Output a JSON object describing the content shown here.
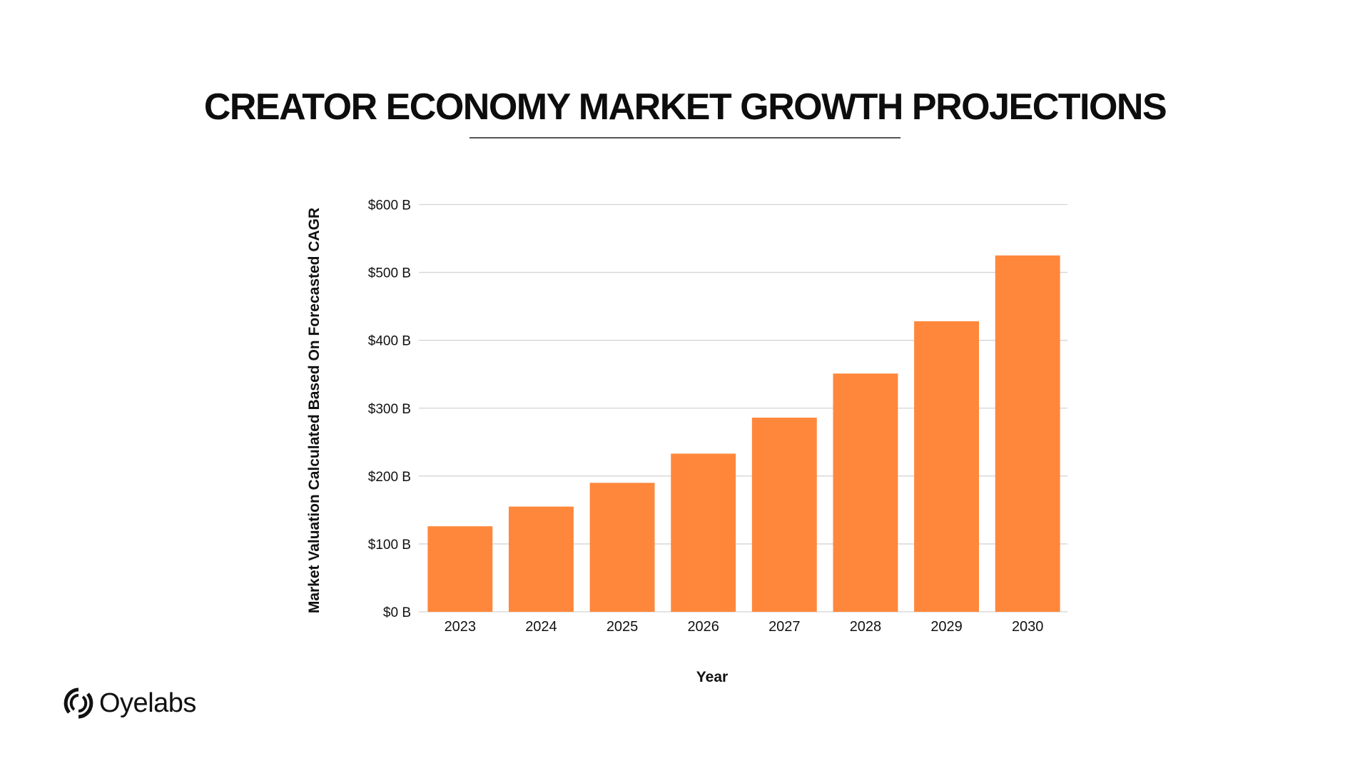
{
  "chart_data": {
    "type": "bar",
    "title": "CREATOR ECONOMY MARKET GROWTH PROJECTIONS",
    "xlabel": "Year",
    "ylabel": "Market Valuation Calculated Based On Forecasted CAGR",
    "categories": [
      "2023",
      "2024",
      "2025",
      "2026",
      "2027",
      "2028",
      "2029",
      "2030"
    ],
    "values": [
      126,
      155,
      190,
      233,
      286,
      351,
      428,
      525
    ],
    "unit": "billion USD",
    "ylim": [
      0,
      600
    ],
    "yticks": [
      0,
      100,
      200,
      300,
      400,
      500,
      600
    ],
    "ytick_labels": [
      "$0 B",
      "$100 B",
      "$200 B",
      "$300 B",
      "$400 B",
      "$500 B",
      "$600 B"
    ],
    "grid": true,
    "bar_color": "#FF873B"
  },
  "logo": {
    "text": "Oyelabs"
  }
}
